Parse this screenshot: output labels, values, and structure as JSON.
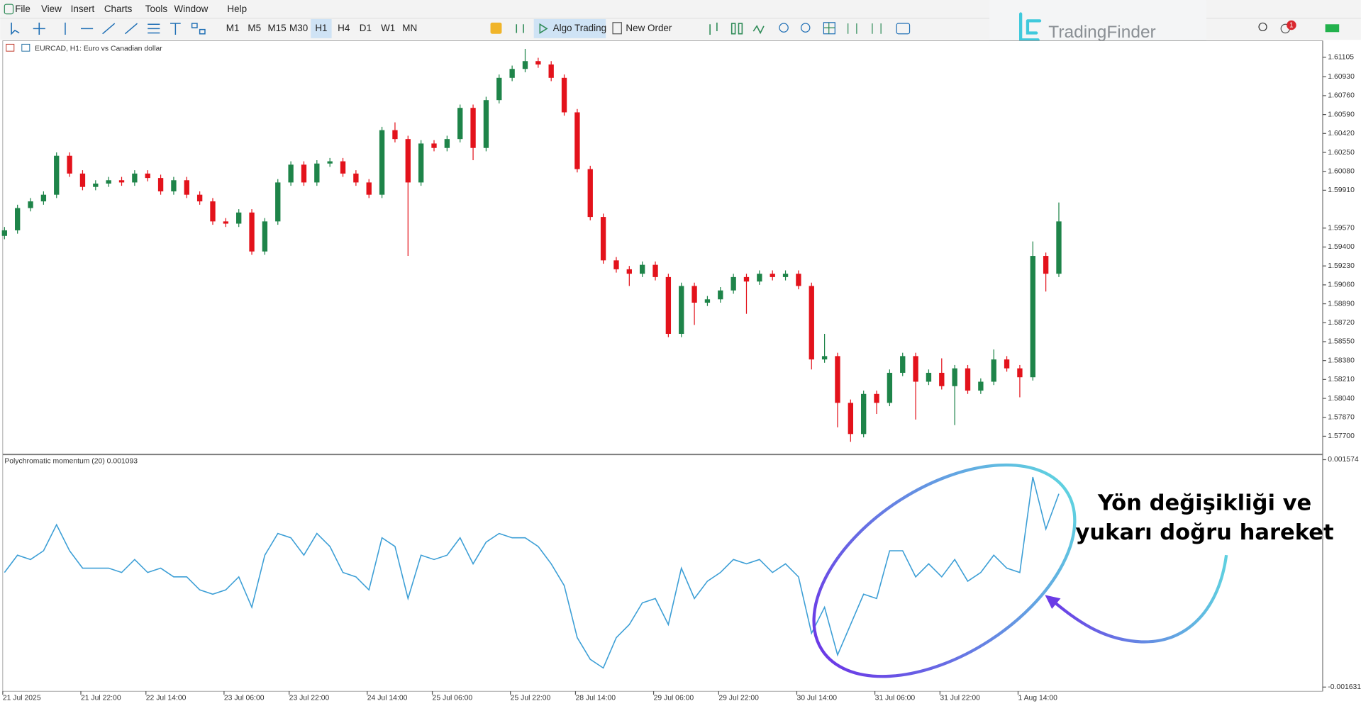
{
  "menu": [
    "File",
    "View",
    "Insert",
    "Charts",
    "Tools",
    "Window",
    "Help"
  ],
  "toolbar": {
    "timeframes": [
      "M1",
      "M5",
      "M15",
      "M30",
      "H1",
      "H4",
      "D1",
      "W1",
      "MN"
    ],
    "algo_trading": "Algo Trading",
    "new_order": "New Order",
    "notification_count": 1
  },
  "logo": "TradingFinder",
  "chart_data": [
    {
      "type": "candlestick",
      "title": "EURCAD, H1:  Euro vs Canadian dollar",
      "categories": [
        "21 Jul 2025",
        null,
        null,
        null,
        null,
        null,
        "21 Jul 22:00",
        null,
        null,
        null,
        null,
        "22 Jul 14:00",
        null,
        null,
        null,
        null,
        null,
        "23 Jul 06:00",
        null,
        null,
        null,
        null,
        "23 Jul 22:00",
        null,
        null,
        null,
        null,
        null,
        "24 Jul 14:00",
        null,
        null,
        null,
        null,
        "25 Jul 06:00",
        null,
        null,
        null,
        null,
        null,
        "25 Jul 22:00",
        null,
        null,
        null,
        null,
        "28 Jul 14:00",
        null,
        null,
        null,
        null,
        null,
        "29 Jul 06:00",
        null,
        null,
        null,
        null,
        "29 Jul 22:00",
        null,
        null,
        null,
        null,
        null,
        "30 Jul 14:00",
        null,
        null,
        null,
        null,
        null,
        "31 Jul 06:00",
        null,
        null,
        null,
        null,
        "31 Jul 22:00",
        null,
        null,
        null,
        null,
        null,
        "1 Aug 14:00",
        null,
        null,
        null
      ],
      "open": [
        1.595,
        1.5955,
        1.5975,
        1.5981,
        1.5987,
        1.6022,
        1.6006,
        1.5994,
        1.5997,
        1.6,
        1.5998,
        1.6006,
        1.6002,
        1.599,
        1.6,
        1.5987,
        1.5981,
        1.5963,
        1.5961,
        1.5971,
        1.5936,
        1.5963,
        1.5998,
        1.6014,
        1.5998,
        1.6015,
        1.6017,
        1.6006,
        1.5998,
        1.5987,
        1.6045,
        1.6037,
        1.5998,
        1.6033,
        1.6029,
        1.6037,
        1.6065,
        1.6029,
        1.6072,
        1.6092,
        1.61,
        1.6107,
        1.6104,
        1.6092,
        1.6061,
        1.601,
        1.5967,
        1.5928,
        1.592,
        1.5916,
        1.5924,
        1.5913,
        1.5862,
        1.5905,
        1.589,
        1.5893,
        1.5901,
        1.5913,
        1.5909,
        1.5916,
        1.5913,
        1.5916,
        1.5905,
        1.5839,
        1.5842,
        1.58,
        1.5772,
        1.5808,
        1.58,
        1.5827,
        1.5842,
        1.5819,
        1.5827,
        1.5815,
        1.5831,
        1.5811,
        1.5819,
        1.5839,
        1.5831,
        1.5823,
        1.5932,
        1.5916
      ],
      "high": [
        1.5958,
        1.5978,
        1.5984,
        1.599,
        1.6025,
        1.6025,
        1.6009,
        1.6,
        1.6003,
        1.6003,
        1.6009,
        1.6009,
        1.6005,
        1.6003,
        1.6003,
        1.599,
        1.5984,
        1.5966,
        1.5974,
        1.5974,
        1.5966,
        1.6001,
        1.6017,
        1.6017,
        1.6018,
        1.602,
        1.602,
        1.6009,
        1.6001,
        1.6048,
        1.6052,
        1.604,
        1.6036,
        1.6036,
        1.604,
        1.6068,
        1.6068,
        1.6075,
        1.6095,
        1.6103,
        1.6118,
        1.611,
        1.6107,
        1.6095,
        1.6064,
        1.6013,
        1.597,
        1.5931,
        1.5923,
        1.5927,
        1.5927,
        1.5916,
        1.5908,
        1.5908,
        1.5896,
        1.5904,
        1.5916,
        1.5916,
        1.5919,
        1.5919,
        1.5919,
        1.5919,
        1.5908,
        1.5862,
        1.5845,
        1.5803,
        1.5811,
        1.5811,
        1.583,
        1.5845,
        1.5845,
        1.583,
        1.584,
        1.5834,
        1.5834,
        1.5822,
        1.5848,
        1.5842,
        1.5834,
        1.5945,
        1.5935,
        1.598
      ],
      "low": [
        1.5947,
        1.5952,
        1.5972,
        1.5978,
        1.5984,
        1.6003,
        1.5991,
        1.5991,
        1.5994,
        1.5995,
        1.5995,
        1.5999,
        1.5987,
        1.5987,
        1.5984,
        1.5978,
        1.596,
        1.5958,
        1.5958,
        1.5933,
        1.5933,
        1.596,
        1.5995,
        1.5995,
        1.5995,
        1.6012,
        1.6003,
        1.5995,
        1.5984,
        1.5984,
        1.6034,
        1.5932,
        1.5995,
        1.6026,
        1.6026,
        1.6034,
        1.6018,
        1.6026,
        1.6069,
        1.6089,
        1.6097,
        1.6101,
        1.6089,
        1.6058,
        1.6007,
        1.5964,
        1.5925,
        1.5917,
        1.5905,
        1.5913,
        1.591,
        1.5859,
        1.5859,
        1.587,
        1.5887,
        1.589,
        1.5898,
        1.588,
        1.5906,
        1.591,
        1.591,
        1.5902,
        1.583,
        1.5836,
        1.5778,
        1.5765,
        1.5769,
        1.579,
        1.5797,
        1.5824,
        1.5785,
        1.5816,
        1.5812,
        1.578,
        1.5808,
        1.5808,
        1.5816,
        1.5828,
        1.5805,
        1.582,
        1.59,
        1.5913
      ],
      "close": [
        1.5955,
        1.5975,
        1.5981,
        1.5987,
        1.6022,
        1.6006,
        1.5994,
        1.5997,
        1.6,
        1.5998,
        1.6006,
        1.6002,
        1.599,
        1.6,
        1.5987,
        1.5981,
        1.5963,
        1.5961,
        1.5971,
        1.5936,
        1.5963,
        1.5998,
        1.6014,
        1.5998,
        1.6015,
        1.6017,
        1.6006,
        1.5998,
        1.5987,
        1.6045,
        1.6037,
        1.5998,
        1.6033,
        1.6029,
        1.6037,
        1.6065,
        1.6029,
        1.6072,
        1.6092,
        1.61,
        1.6107,
        1.6104,
        1.6092,
        1.6061,
        1.601,
        1.5967,
        1.5928,
        1.592,
        1.5916,
        1.5924,
        1.5913,
        1.5862,
        1.5905,
        1.589,
        1.5893,
        1.5901,
        1.5913,
        1.5909,
        1.5916,
        1.5913,
        1.5916,
        1.5905,
        1.5839,
        1.5842,
        1.58,
        1.5772,
        1.5808,
        1.58,
        1.5827,
        1.5842,
        1.5819,
        1.5827,
        1.5815,
        1.5831,
        1.5811,
        1.5819,
        1.5839,
        1.5831,
        1.5823,
        1.5932,
        1.5916,
        1.5963
      ],
      "up_color": "#1e8449",
      "down_color": "#e3121b",
      "ylim": [
        1.57544,
        1.61253
      ],
      "yticks": [
        {
          "value": 1.61105,
          "label": "1.61105"
        },
        {
          "value": 1.6093,
          "label": "1.60930"
        },
        {
          "value": 1.6076,
          "label": "1.60760"
        },
        {
          "value": 1.6059,
          "label": "1.60590"
        },
        {
          "value": 1.6042,
          "label": "1.60420"
        },
        {
          "value": 1.6025,
          "label": "1.60250"
        },
        {
          "value": 1.6008,
          "label": "1.60080"
        },
        {
          "value": 1.5991,
          "label": "1.59910"
        },
        {
          "value": 1.5957,
          "label": "1.59570"
        },
        {
          "value": 1.594,
          "label": "1.59400"
        },
        {
          "value": 1.5923,
          "label": "1.59230"
        },
        {
          "value": 1.5906,
          "label": "1.59060"
        },
        {
          "value": 1.5889,
          "label": "1.58890"
        },
        {
          "value": 1.5872,
          "label": "1.58720"
        },
        {
          "value": 1.5855,
          "label": "1.58550"
        },
        {
          "value": 1.5838,
          "label": "1.58380"
        },
        {
          "value": 1.5821,
          "label": "1.58210"
        },
        {
          "value": 1.5804,
          "label": "1.58040"
        },
        {
          "value": 1.5787,
          "label": "1.57870"
        },
        {
          "value": 1.577,
          "label": "1.57700"
        }
      ]
    },
    {
      "type": "line",
      "title": "Polychromatic momentum (20) 0.001093",
      "color": "#3d9fd6",
      "values": [
        -1.6e-05,
        0.000228,
        0.000167,
        0.00029,
        0.000657,
        0.00029,
        4.5e-05,
        4.5e-05,
        4.5e-05,
        -1.6e-05,
        0.000167,
        -1.6e-05,
        4.5e-05,
        -7.8e-05,
        -7.8e-05,
        -0.000261,
        -0.000322,
        -0.000261,
        -7.8e-05,
        -0.000506,
        0.000228,
        0.000534,
        0.000473,
        0.000228,
        0.000534,
        0.000351,
        -1.6e-05,
        -7.8e-05,
        -0.000261,
        0.000473,
        0.000351,
        -0.000383,
        0.000228,
        0.000167,
        0.000228,
        0.000473,
        0.000106,
        0.000412,
        0.000534,
        0.000473,
        0.000473,
        0.000351,
        0.000106,
        -0.0002,
        -0.000934,
        -0.00124,
        -0.001362,
        -0.000934,
        -0.00075,
        -0.000444,
        -0.000383,
        -0.00075,
        4.5e-05,
        -0.000383,
        -0.000139,
        -1.6e-05,
        0.000167,
        0.000106,
        0.000167,
        -1.6e-05,
        0.000106,
        -7.8e-05,
        -0.000873,
        -0.000506,
        -0.001178,
        -0.00075,
        -0.000322,
        -0.000383,
        0.00029,
        0.00029,
        -7.8e-05,
        0.000106,
        -7.8e-05,
        0.000167,
        -0.000139,
        -1.6e-05,
        0.000228,
        4.5e-05,
        -1.6e-05,
        0.001329,
        0.000596,
        0.001093
      ],
      "ylim": [
        -0.00169,
        0.001635
      ],
      "yticks": [
        0.001574,
        -0.001631
      ]
    }
  ],
  "annotation": [
    "Yön değişikliği ve",
    "yukarı doğru hareket"
  ]
}
